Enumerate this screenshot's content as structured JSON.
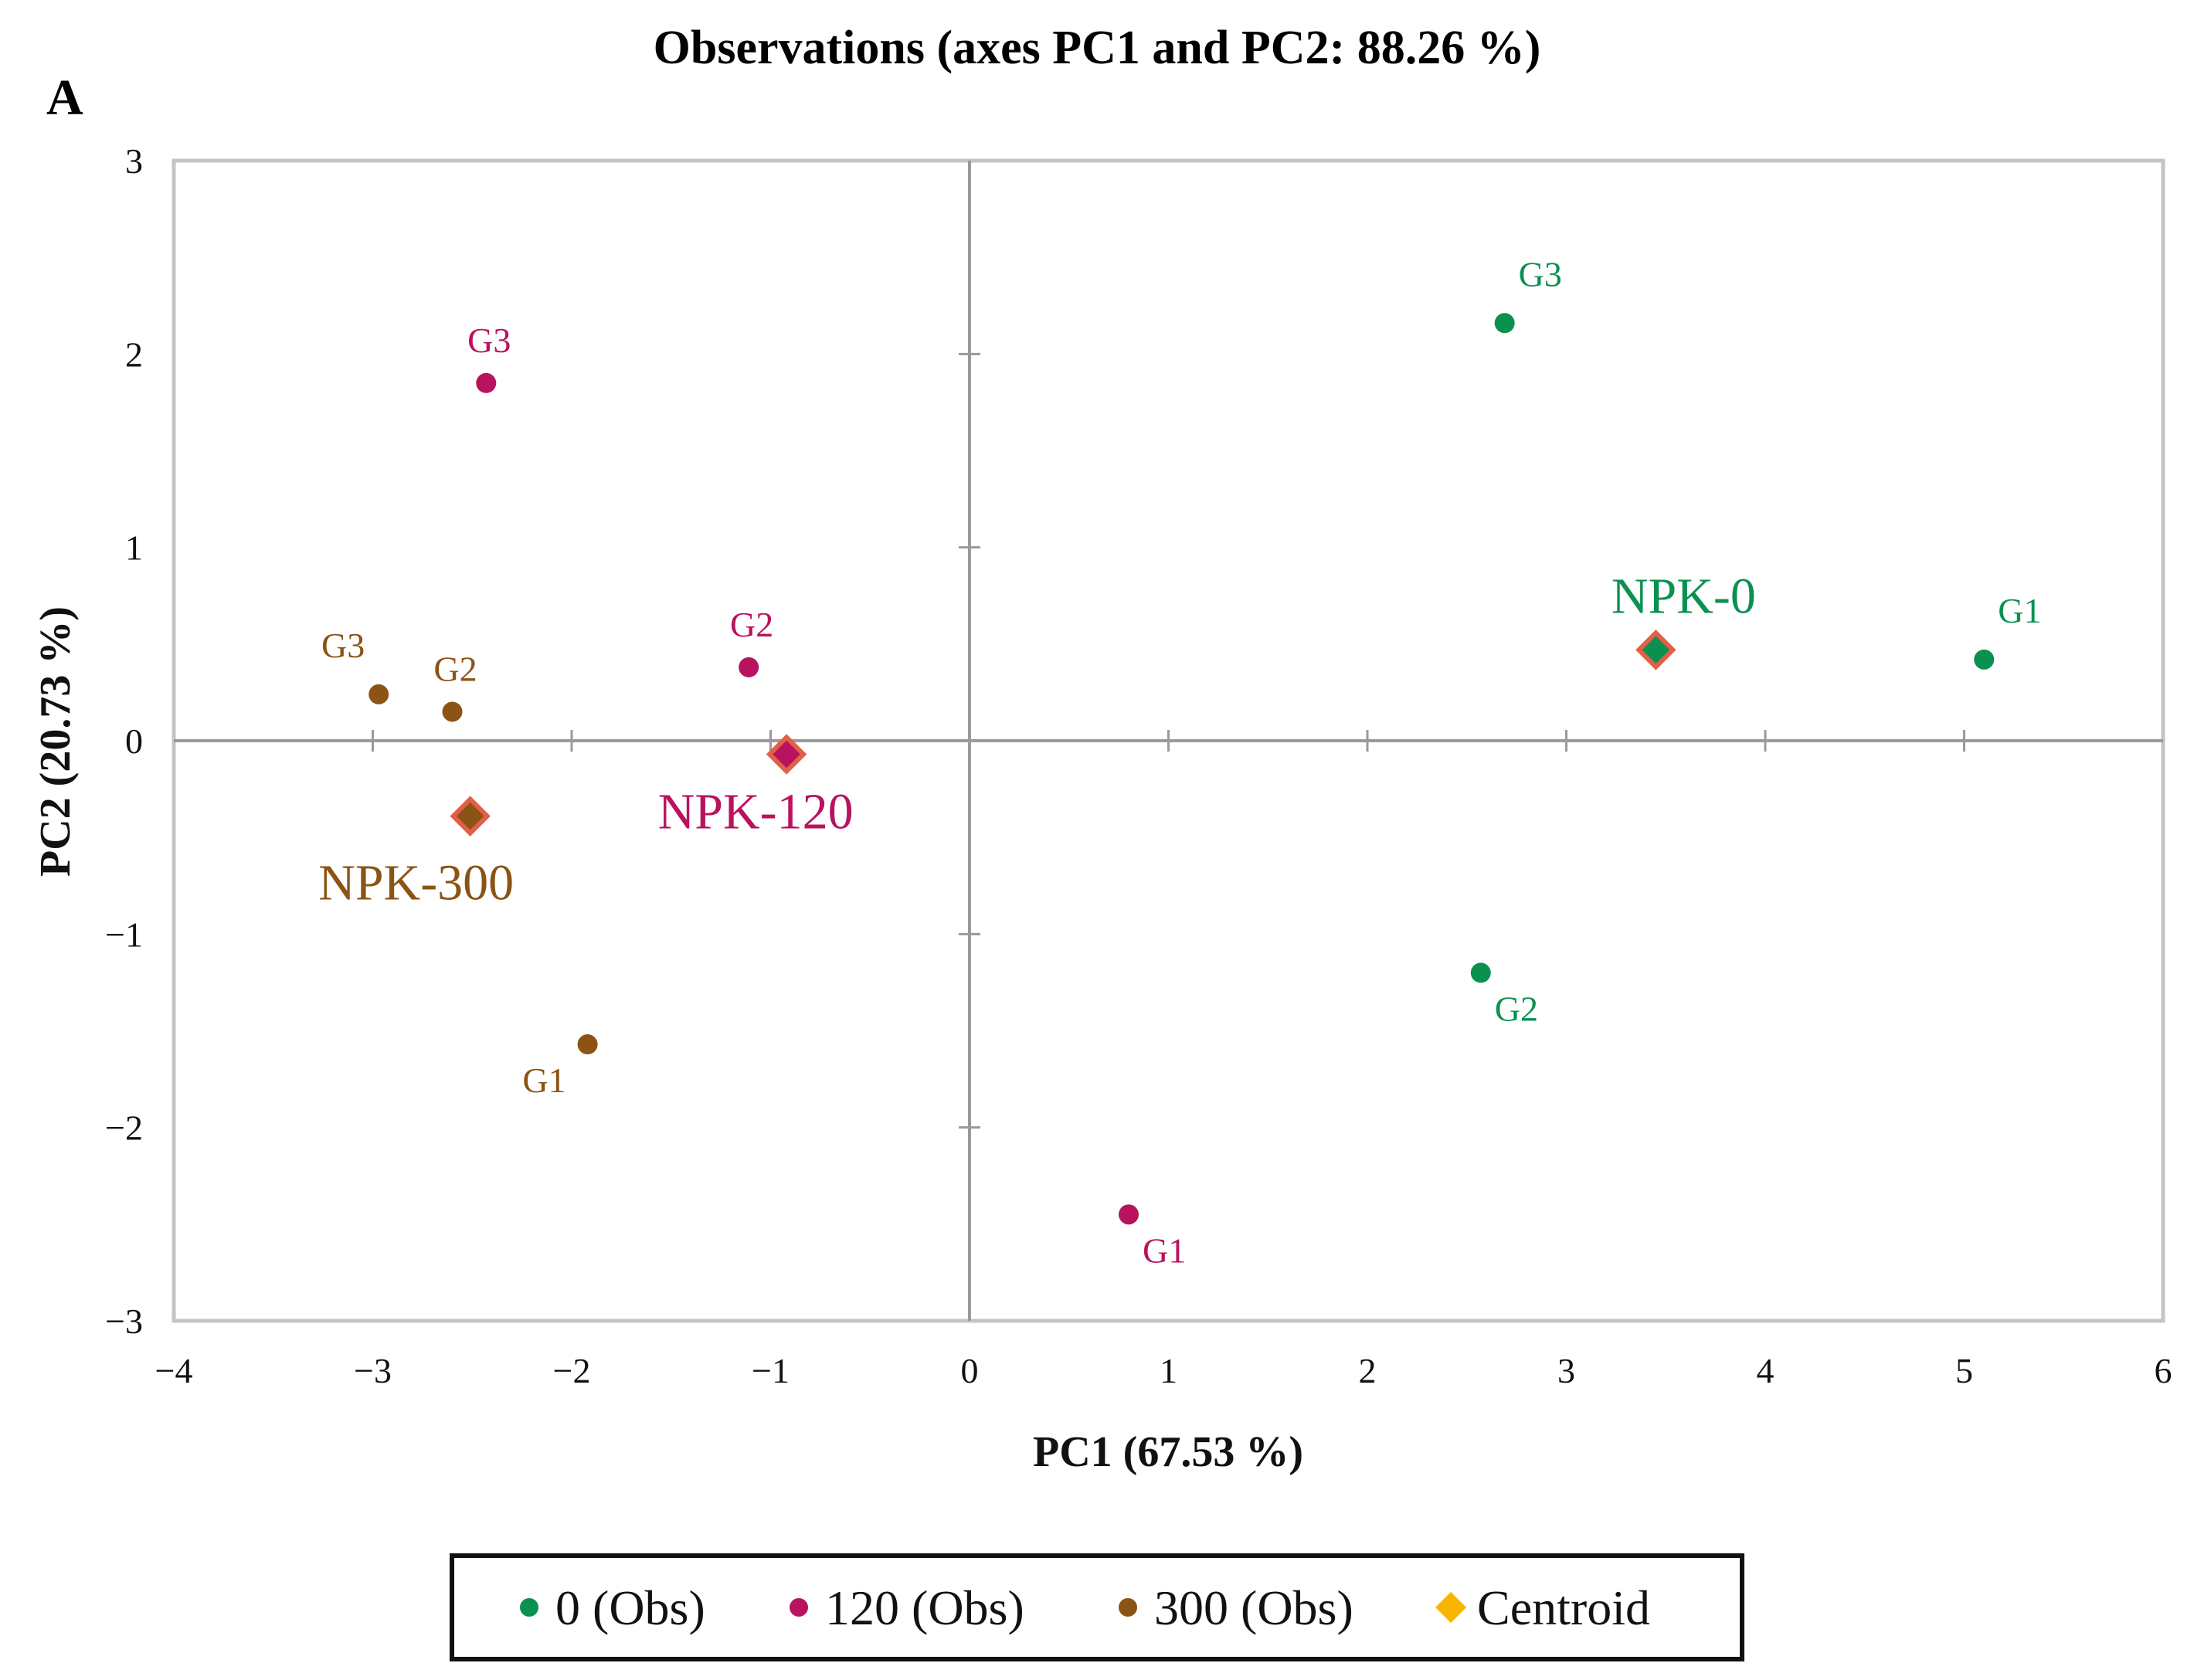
{
  "chart_data": {
    "type": "scatter",
    "title": "Observations (axes PC1 and PC2: 88.26 %)",
    "panel_label": "A",
    "xlabel": "PC1 (67.53 %)",
    "ylabel": "PC2 (20.73 %)",
    "xlim": [
      -4,
      6
    ],
    "ylim": [
      -3,
      3
    ],
    "x_ticks": [
      {
        "v": -4,
        "label": "−4"
      },
      {
        "v": -3,
        "label": "−3"
      },
      {
        "v": -2,
        "label": "−2"
      },
      {
        "v": -1,
        "label": "−1"
      },
      {
        "v": 0,
        "label": "0"
      },
      {
        "v": 1,
        "label": "1"
      },
      {
        "v": 2,
        "label": "2"
      },
      {
        "v": 3,
        "label": "3"
      },
      {
        "v": 4,
        "label": "4"
      },
      {
        "v": 5,
        "label": "5"
      },
      {
        "v": 6,
        "label": "6"
      }
    ],
    "y_ticks": [
      {
        "v": 3,
        "label": "3"
      },
      {
        "v": 2,
        "label": "2"
      },
      {
        "v": 1,
        "label": "1"
      },
      {
        "v": 0,
        "label": "0"
      },
      {
        "v": -1,
        "label": "−1"
      },
      {
        "v": -2,
        "label": "−2"
      },
      {
        "v": -3,
        "label": "−3"
      }
    ],
    "series": [
      {
        "name": "0 (Obs)",
        "color": "#0a9150",
        "points": [
          {
            "label": "G1",
            "x": 5.1,
            "y": 0.42,
            "label_pos": "above-right"
          },
          {
            "label": "G2",
            "x": 2.57,
            "y": -1.2,
            "label_pos": "below-right"
          },
          {
            "label": "G3",
            "x": 2.69,
            "y": 2.16,
            "label_pos": "above-right"
          }
        ]
      },
      {
        "name": "120 (Obs)",
        "color": "#b8135e",
        "points": [
          {
            "label": "G1",
            "x": 0.8,
            "y": -2.45,
            "label_pos": "below-right"
          },
          {
            "label": "G2",
            "x": -1.11,
            "y": 0.38,
            "label_pos": "above"
          },
          {
            "label": "G3",
            "x": -2.43,
            "y": 1.85,
            "label_pos": "above"
          }
        ]
      },
      {
        "name": "300 (Obs)",
        "color": "#8b5314",
        "points": [
          {
            "label": "G1",
            "x": -1.92,
            "y": -1.57,
            "label_pos": "below-left"
          },
          {
            "label": "G2",
            "x": -2.6,
            "y": 0.15,
            "label_pos": "above"
          },
          {
            "label": "G3",
            "x": -2.97,
            "y": 0.24,
            "label_pos": "above-left"
          }
        ]
      }
    ],
    "centroids": {
      "name": "Centroid",
      "legend_color": "#f7b500",
      "outline_color": "#e0604a",
      "items": [
        {
          "label": "NPK-0",
          "x": 3.45,
          "y": 0.47,
          "fill": "#0a9150",
          "label_pos": "above"
        },
        {
          "label": "NPK-120",
          "x": -0.92,
          "y": -0.07,
          "fill": "#b8135e",
          "label_pos": "below"
        },
        {
          "label": "NPK-300",
          "x": -2.51,
          "y": -0.39,
          "fill": "#8b5314",
          "label_pos": "below"
        }
      ]
    },
    "grid": false,
    "legend_position": "bottom"
  }
}
